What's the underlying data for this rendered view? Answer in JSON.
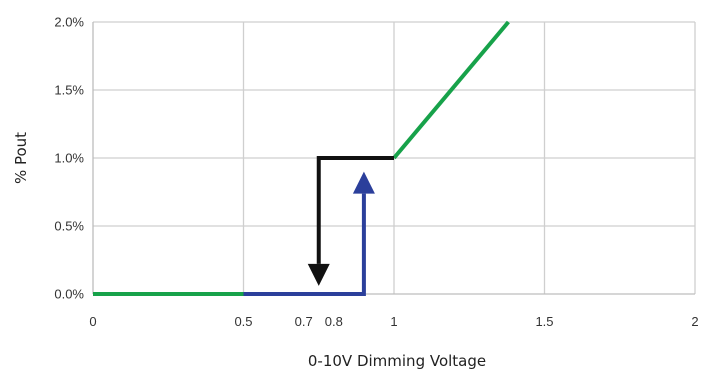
{
  "chart_data": {
    "type": "line",
    "xlabel": "0-10V Dimming Voltage",
    "ylabel": "% Pout",
    "xlim": [
      0,
      2
    ],
    "ylim": [
      0,
      2.0
    ],
    "x_ticks": [
      {
        "value": 0,
        "label": "0"
      },
      {
        "value": 0.5,
        "label": "0.5"
      },
      {
        "value": 0.7,
        "label": "0.7"
      },
      {
        "value": 0.8,
        "label": "0.8"
      },
      {
        "value": 1,
        "label": "1"
      },
      {
        "value": 1.5,
        "label": "1.5"
      },
      {
        "value": 2,
        "label": "2"
      }
    ],
    "y_ticks": [
      {
        "value": 0,
        "label": "0.0%"
      },
      {
        "value": 0.5,
        "label": "0.5%"
      },
      {
        "value": 1.0,
        "label": "1.0%"
      },
      {
        "value": 1.5,
        "label": "1.5%"
      },
      {
        "value": 2.0,
        "label": "2.0%"
      }
    ],
    "grid_x": [
      0.5,
      1,
      1.5,
      2
    ],
    "grid_y": [
      0.5,
      1.0,
      1.5,
      2.0
    ],
    "grid": true,
    "series": [
      {
        "color": "#17a24a",
        "points": [
          [
            0,
            0
          ],
          [
            0.5,
            0
          ]
        ]
      },
      {
        "color": "#17a24a",
        "points": [
          [
            1.0,
            1.0
          ],
          [
            1.38,
            2.0
          ]
        ]
      },
      {
        "color": "#2b3f9b",
        "points": [
          [
            0.5,
            0
          ],
          [
            0.9,
            0
          ],
          [
            0.9,
            0.9
          ]
        ],
        "arrow": "end"
      },
      {
        "color": "#111111",
        "points": [
          [
            1.0,
            1.0
          ],
          [
            0.75,
            1.0
          ],
          [
            0.75,
            0.06
          ]
        ],
        "arrow": "end"
      }
    ]
  }
}
